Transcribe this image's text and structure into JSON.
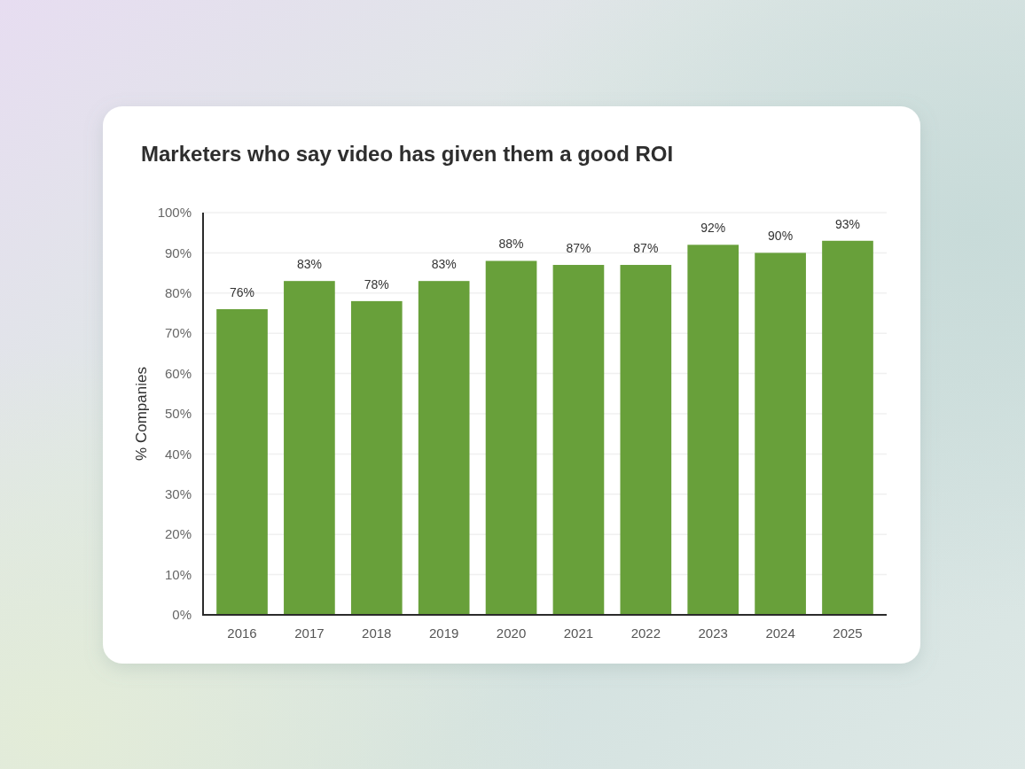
{
  "chart_data": {
    "type": "bar",
    "title": "Marketers who say video has given them a good ROI",
    "ylabel": "% Companies",
    "categories": [
      "2016",
      "2017",
      "2018",
      "2019",
      "2020",
      "2021",
      "2022",
      "2023",
      "2024",
      "2025"
    ],
    "values": [
      76,
      83,
      78,
      83,
      88,
      87,
      87,
      92,
      90,
      93
    ],
    "color": "#68a03a",
    "value_labels": [
      "76%",
      "83%",
      "78%",
      "83%",
      "88%",
      "87%",
      "87%",
      "92%",
      "90%",
      "93%"
    ],
    "ylim": [
      0,
      100
    ],
    "yticks": [
      {
        "value": 0,
        "label": "0%"
      },
      {
        "value": 10,
        "label": "10%"
      },
      {
        "value": 20,
        "label": "20%"
      },
      {
        "value": 30,
        "label": "30%"
      },
      {
        "value": 40,
        "label": "40%"
      },
      {
        "value": 50,
        "label": "50%"
      },
      {
        "value": 60,
        "label": "60%"
      },
      {
        "value": 70,
        "label": "70%"
      },
      {
        "value": 80,
        "label": "80%"
      },
      {
        "value": 90,
        "label": "90%"
      },
      {
        "value": 100,
        "label": "100%"
      }
    ],
    "grid": "y"
  }
}
